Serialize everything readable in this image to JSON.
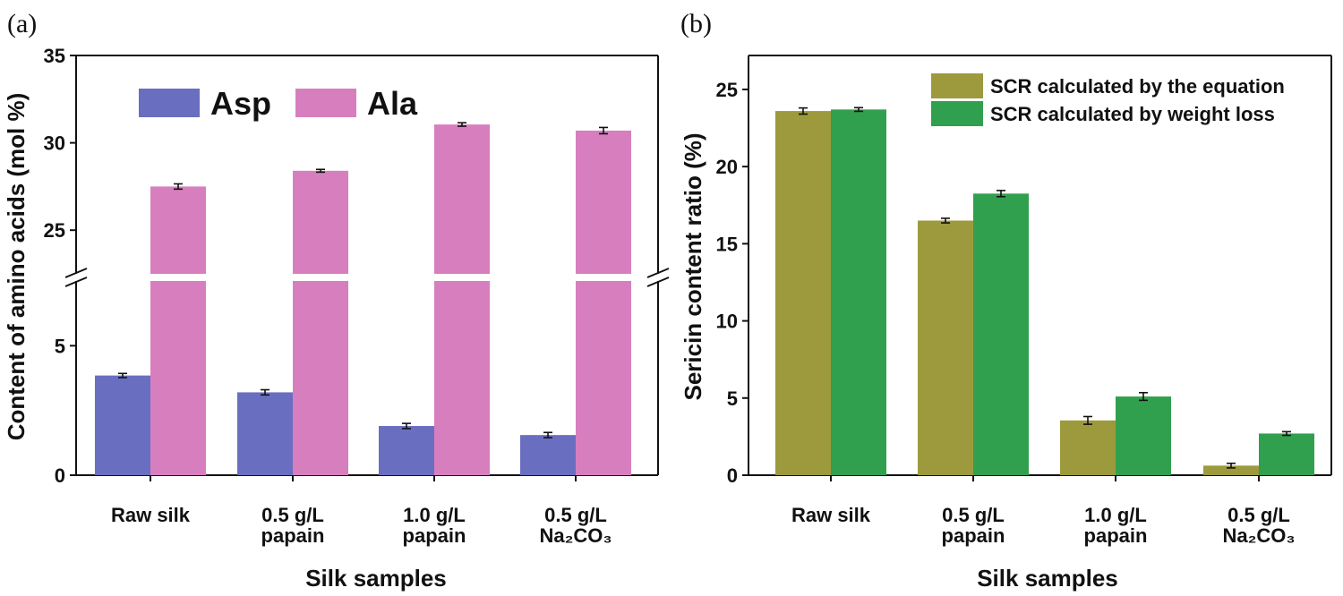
{
  "chart_data": [
    {
      "panel_label": "(a)",
      "type": "bar",
      "categories": [
        {
          "line1": "Raw silk",
          "line2": ""
        },
        {
          "line1": "0.5 g/L",
          "line2": "papain"
        },
        {
          "line1": "1.0 g/L",
          "line2": "papain"
        },
        {
          "line1": "0.5 g/L",
          "line2": "Na₂CO₃"
        }
      ],
      "series": [
        {
          "name": "Asp",
          "color": "#6a6ec0",
          "values": [
            3.85,
            3.2,
            1.9,
            1.55
          ],
          "errors": [
            0.08,
            0.1,
            0.1,
            0.1
          ]
        },
        {
          "name": "Ala",
          "color": "#d77fbe",
          "values": [
            27.5,
            28.4,
            31.05,
            30.7
          ],
          "errors": [
            0.15,
            0.08,
            0.1,
            0.18
          ]
        }
      ],
      "xlabel": "Silk samples",
      "ylabel": "Content of amino acids (mol %)",
      "axis_break": {
        "lower_range": [
          0,
          7.5
        ],
        "upper_range": [
          22.5,
          35
        ]
      },
      "lower_ticks": [
        0,
        5
      ],
      "upper_ticks": [
        25,
        30,
        35
      ],
      "legend": "top"
    },
    {
      "panel_label": "(b)",
      "type": "bar",
      "categories": [
        {
          "line1": "Raw silk",
          "line2": ""
        },
        {
          "line1": "0.5 g/L",
          "line2": "papain"
        },
        {
          "line1": "1.0 g/L",
          "line2": "papain"
        },
        {
          "line1": "0.5 g/L",
          "line2": "Na₂CO₃"
        }
      ],
      "series": [
        {
          "name": "SCR calculated by the equation",
          "color": "#9c9a3c",
          "values": [
            23.6,
            16.5,
            3.55,
            0.62
          ],
          "errors": [
            0.2,
            0.15,
            0.25,
            0.15
          ]
        },
        {
          "name": "SCR calculated by weight loss",
          "color": "#31a04e",
          "values": [
            23.7,
            18.25,
            5.1,
            2.7
          ],
          "errors": [
            0.12,
            0.2,
            0.25,
            0.12
          ]
        }
      ],
      "xlabel": "Silk samples",
      "ylabel": "Sericin content ratio (%)",
      "ylim": [
        0,
        27.2
      ],
      "yticks": [
        0,
        5,
        10,
        15,
        20,
        25
      ],
      "legend": "top-right"
    }
  ]
}
